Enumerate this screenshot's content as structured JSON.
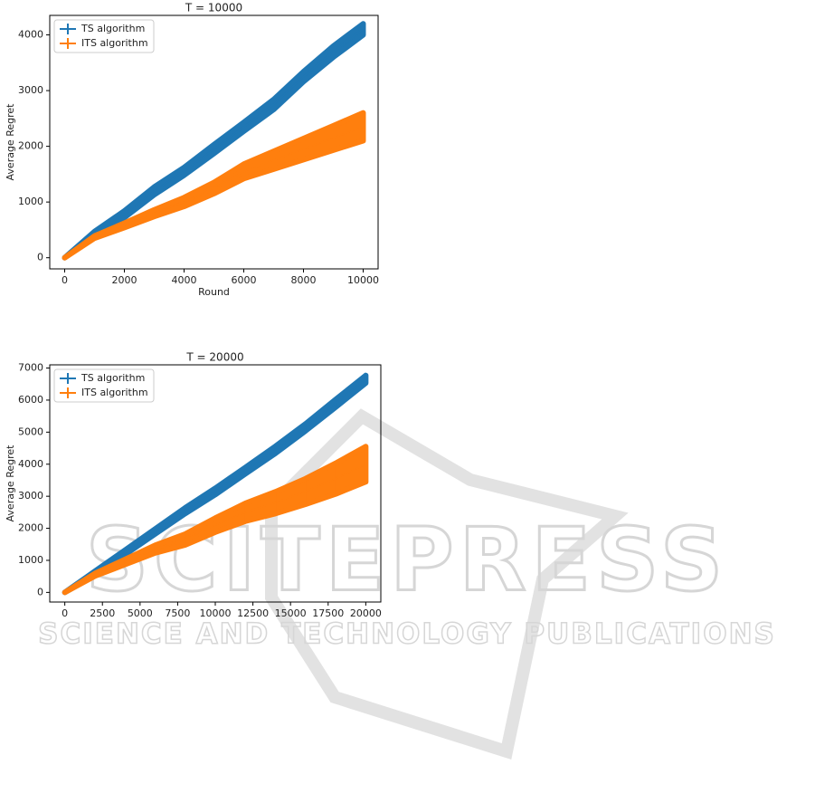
{
  "chart_data": [
    {
      "type": "line",
      "title": "T = 10000",
      "xlabel": "Round",
      "ylabel": "Average Regret",
      "x": [
        0,
        1000,
        2000,
        3000,
        4000,
        5000,
        6000,
        7000,
        8000,
        9000,
        10000
      ],
      "series": [
        {
          "name": "TS algorithm",
          "color": "#1f77b4",
          "values": [
            0,
            420,
            780,
            1200,
            1550,
            1950,
            2350,
            2750,
            3250,
            3700,
            4100
          ],
          "errors": [
            0,
            50,
            60,
            70,
            70,
            80,
            80,
            90,
            90,
            100,
            100
          ]
        },
        {
          "name": "ITS algorithm",
          "color": "#ff7f0e",
          "values": [
            0,
            370,
            580,
            800,
            1000,
            1250,
            1550,
            1750,
            1950,
            2150,
            2350
          ],
          "errors": [
            0,
            20,
            40,
            60,
            80,
            100,
            130,
            160,
            190,
            220,
            250
          ]
        }
      ],
      "xlim": [
        -500,
        10500
      ],
      "ylim": [
        -200,
        4350
      ],
      "xticks": [
        0,
        2000,
        4000,
        6000,
        8000,
        10000
      ],
      "yticks": [
        0,
        1000,
        2000,
        3000,
        4000
      ],
      "legend": "upper left"
    },
    {
      "type": "line",
      "title": "T = 20000",
      "ylabel": "Average Regret",
      "x": [
        0,
        2000,
        4000,
        6000,
        8000,
        10000,
        12000,
        14000,
        16000,
        18000,
        20000
      ],
      "series": [
        {
          "name": "TS algorithm",
          "color": "#1f77b4",
          "values": [
            0,
            600,
            1250,
            1900,
            2550,
            3150,
            3800,
            4450,
            5150,
            5900,
            6650
          ],
          "errors": [
            0,
            60,
            70,
            80,
            90,
            100,
            100,
            110,
            110,
            120,
            120
          ]
        },
        {
          "name": "ITS algorithm",
          "color": "#ff7f0e",
          "values": [
            0,
            550,
            950,
            1350,
            1650,
            2100,
            2500,
            2800,
            3150,
            3550,
            4000
          ],
          "errors": [
            0,
            40,
            80,
            120,
            170,
            220,
            280,
            340,
            400,
            480,
            550
          ]
        }
      ],
      "xlim": [
        -1000,
        21000
      ],
      "ylim": [
        -300,
        7100
      ],
      "xticks": [
        0,
        2500,
        5000,
        7500,
        10000,
        12500,
        15000,
        17500,
        20000
      ],
      "yticks": [
        0,
        1000,
        2000,
        3000,
        4000,
        5000,
        6000,
        7000
      ],
      "legend": "upper left"
    }
  ],
  "watermark": {
    "brand": "SCITEPRESS",
    "tagline": "SCIENCE AND TECHNOLOGY PUBLICATIONS"
  }
}
